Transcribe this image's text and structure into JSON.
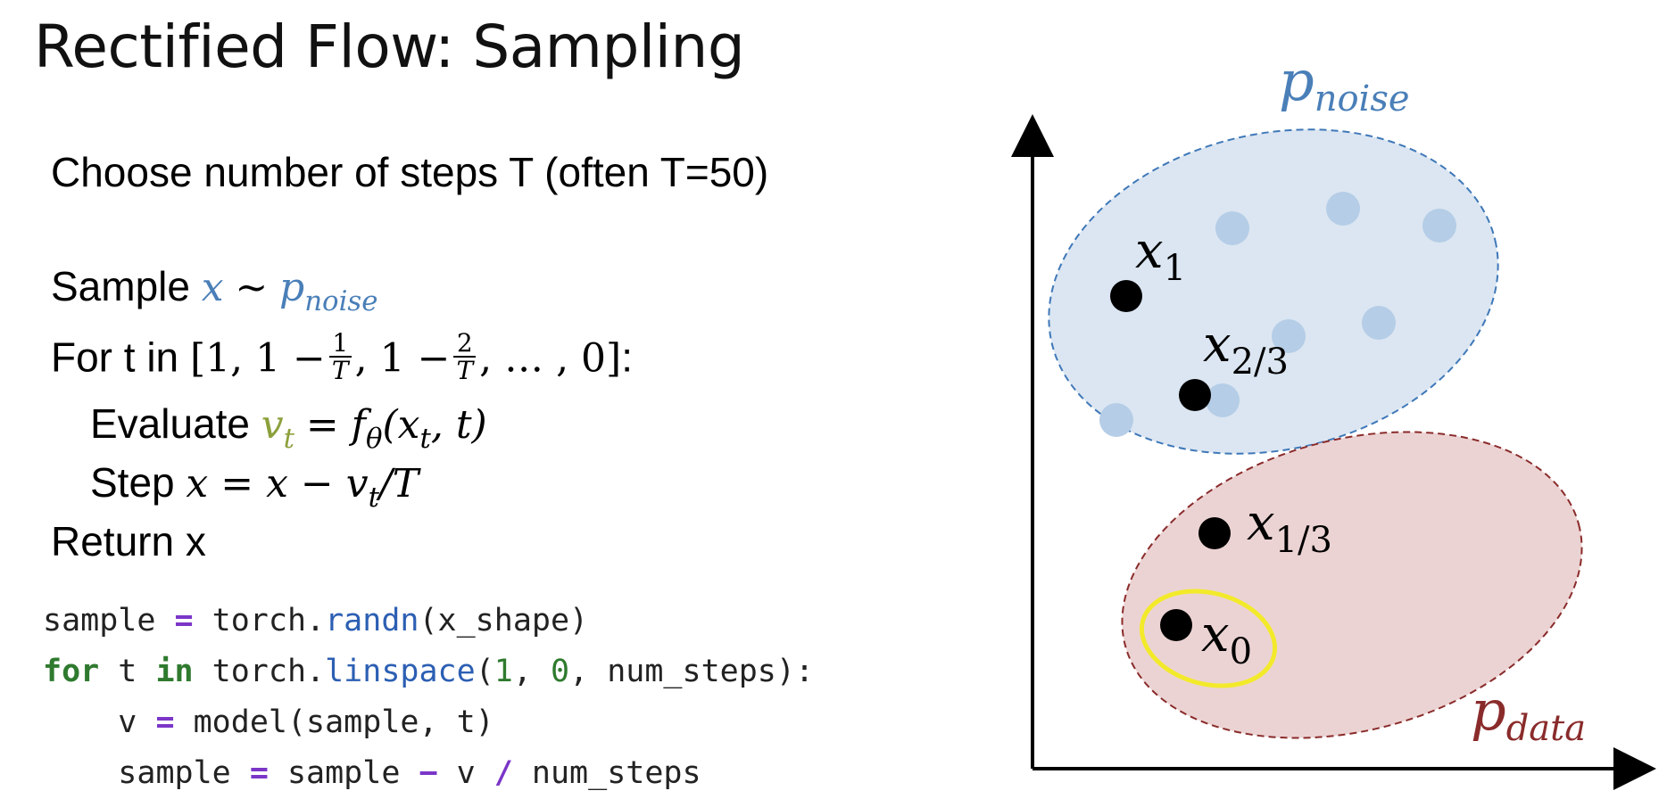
{
  "title": "Rectified Flow: Sampling",
  "steps_line": "Choose number of steps T (often T=50)",
  "algorithm": {
    "sample_word": "Sample",
    "x_var": "x",
    "tilde": "∼",
    "p_main": "p",
    "noise_sub": "noise",
    "for_word": "For t in",
    "list_open": "[1, 1 −",
    "frac1_num": "1",
    "frac1_den": "T",
    "list_mid": ", 1 −",
    "frac2_num": "2",
    "frac2_den": "T",
    "list_close": ", … , 0]",
    "colon": ":",
    "evaluate_word": "Evaluate",
    "v_main": "v",
    "t_sub": "t",
    "eval_rhs": "= f",
    "theta_sub": "θ",
    "eval_args_open": "(x",
    "eval_args_close": ", t)",
    "step_word": "Step",
    "step_lhs": "x = x − v",
    "step_rhs": "/T",
    "return_line": "Return x"
  },
  "code": {
    "line1": {
      "a": "sample ",
      "op": "=",
      "b": " torch.",
      "fn": "randn",
      "c": "(x_shape)"
    },
    "line2": {
      "kw1": "for",
      "a": " t ",
      "kw2": "in",
      "b": " torch.",
      "fn": "linspace",
      "c": "(",
      "n1": "1",
      "d": ", ",
      "n2": "0",
      "e": ", num_steps):"
    },
    "line3": {
      "indent": "    ",
      "a": "v ",
      "op": "=",
      "b": " model(sample, t)"
    },
    "line4": {
      "indent": "    ",
      "a": "sample ",
      "op1": "=",
      "b": " sample ",
      "op2": "−",
      "c": " v ",
      "op3": "/",
      "d": " num_steps"
    }
  },
  "diagram": {
    "noise_label_main": "p",
    "noise_label_sub": "noise",
    "data_label_main": "p",
    "data_label_sub": "data",
    "x1_main": "x",
    "x1_sub": "1",
    "x23_main": "x",
    "x23_sub": "2/3",
    "x13_main": "x",
    "x13_sub": "1/3",
    "x0_main": "x",
    "x0_sub": "0",
    "colors": {
      "noise_fill": "#dbe6f2",
      "noise_stroke": "#3f78b8",
      "noise_dot": "#b5cde6",
      "data_fill": "#ecd3d3",
      "data_stroke": "#8a2b2b",
      "highlight": "#f2ea2a",
      "point": "#000000"
    }
  }
}
